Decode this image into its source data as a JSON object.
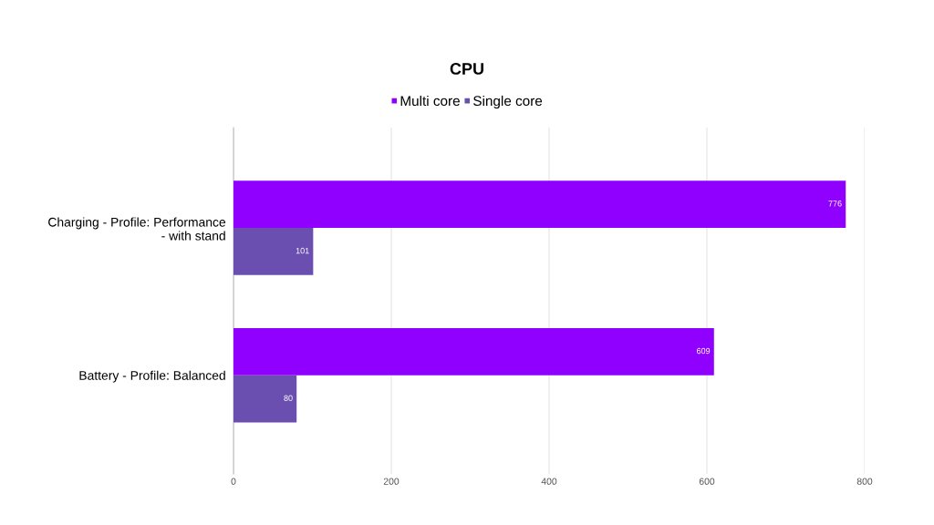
{
  "chart_data": {
    "type": "bar",
    "orientation": "horizontal",
    "subtitle": "CPU",
    "categories": [
      "Charging - Profile: Performance\n- with stand",
      "Battery - Profile: Balanced"
    ],
    "series": [
      {
        "name": "Multi core",
        "color": "#9000ff",
        "values": [
          776,
          609
        ]
      },
      {
        "name": "Single core",
        "color": "#6a4fb0",
        "values": [
          101,
          80
        ]
      }
    ],
    "xlim": [
      0,
      800
    ],
    "xticks": [
      0,
      200,
      400,
      600,
      800
    ],
    "grid": "x",
    "legend": "top",
    "data_labels": true
  }
}
